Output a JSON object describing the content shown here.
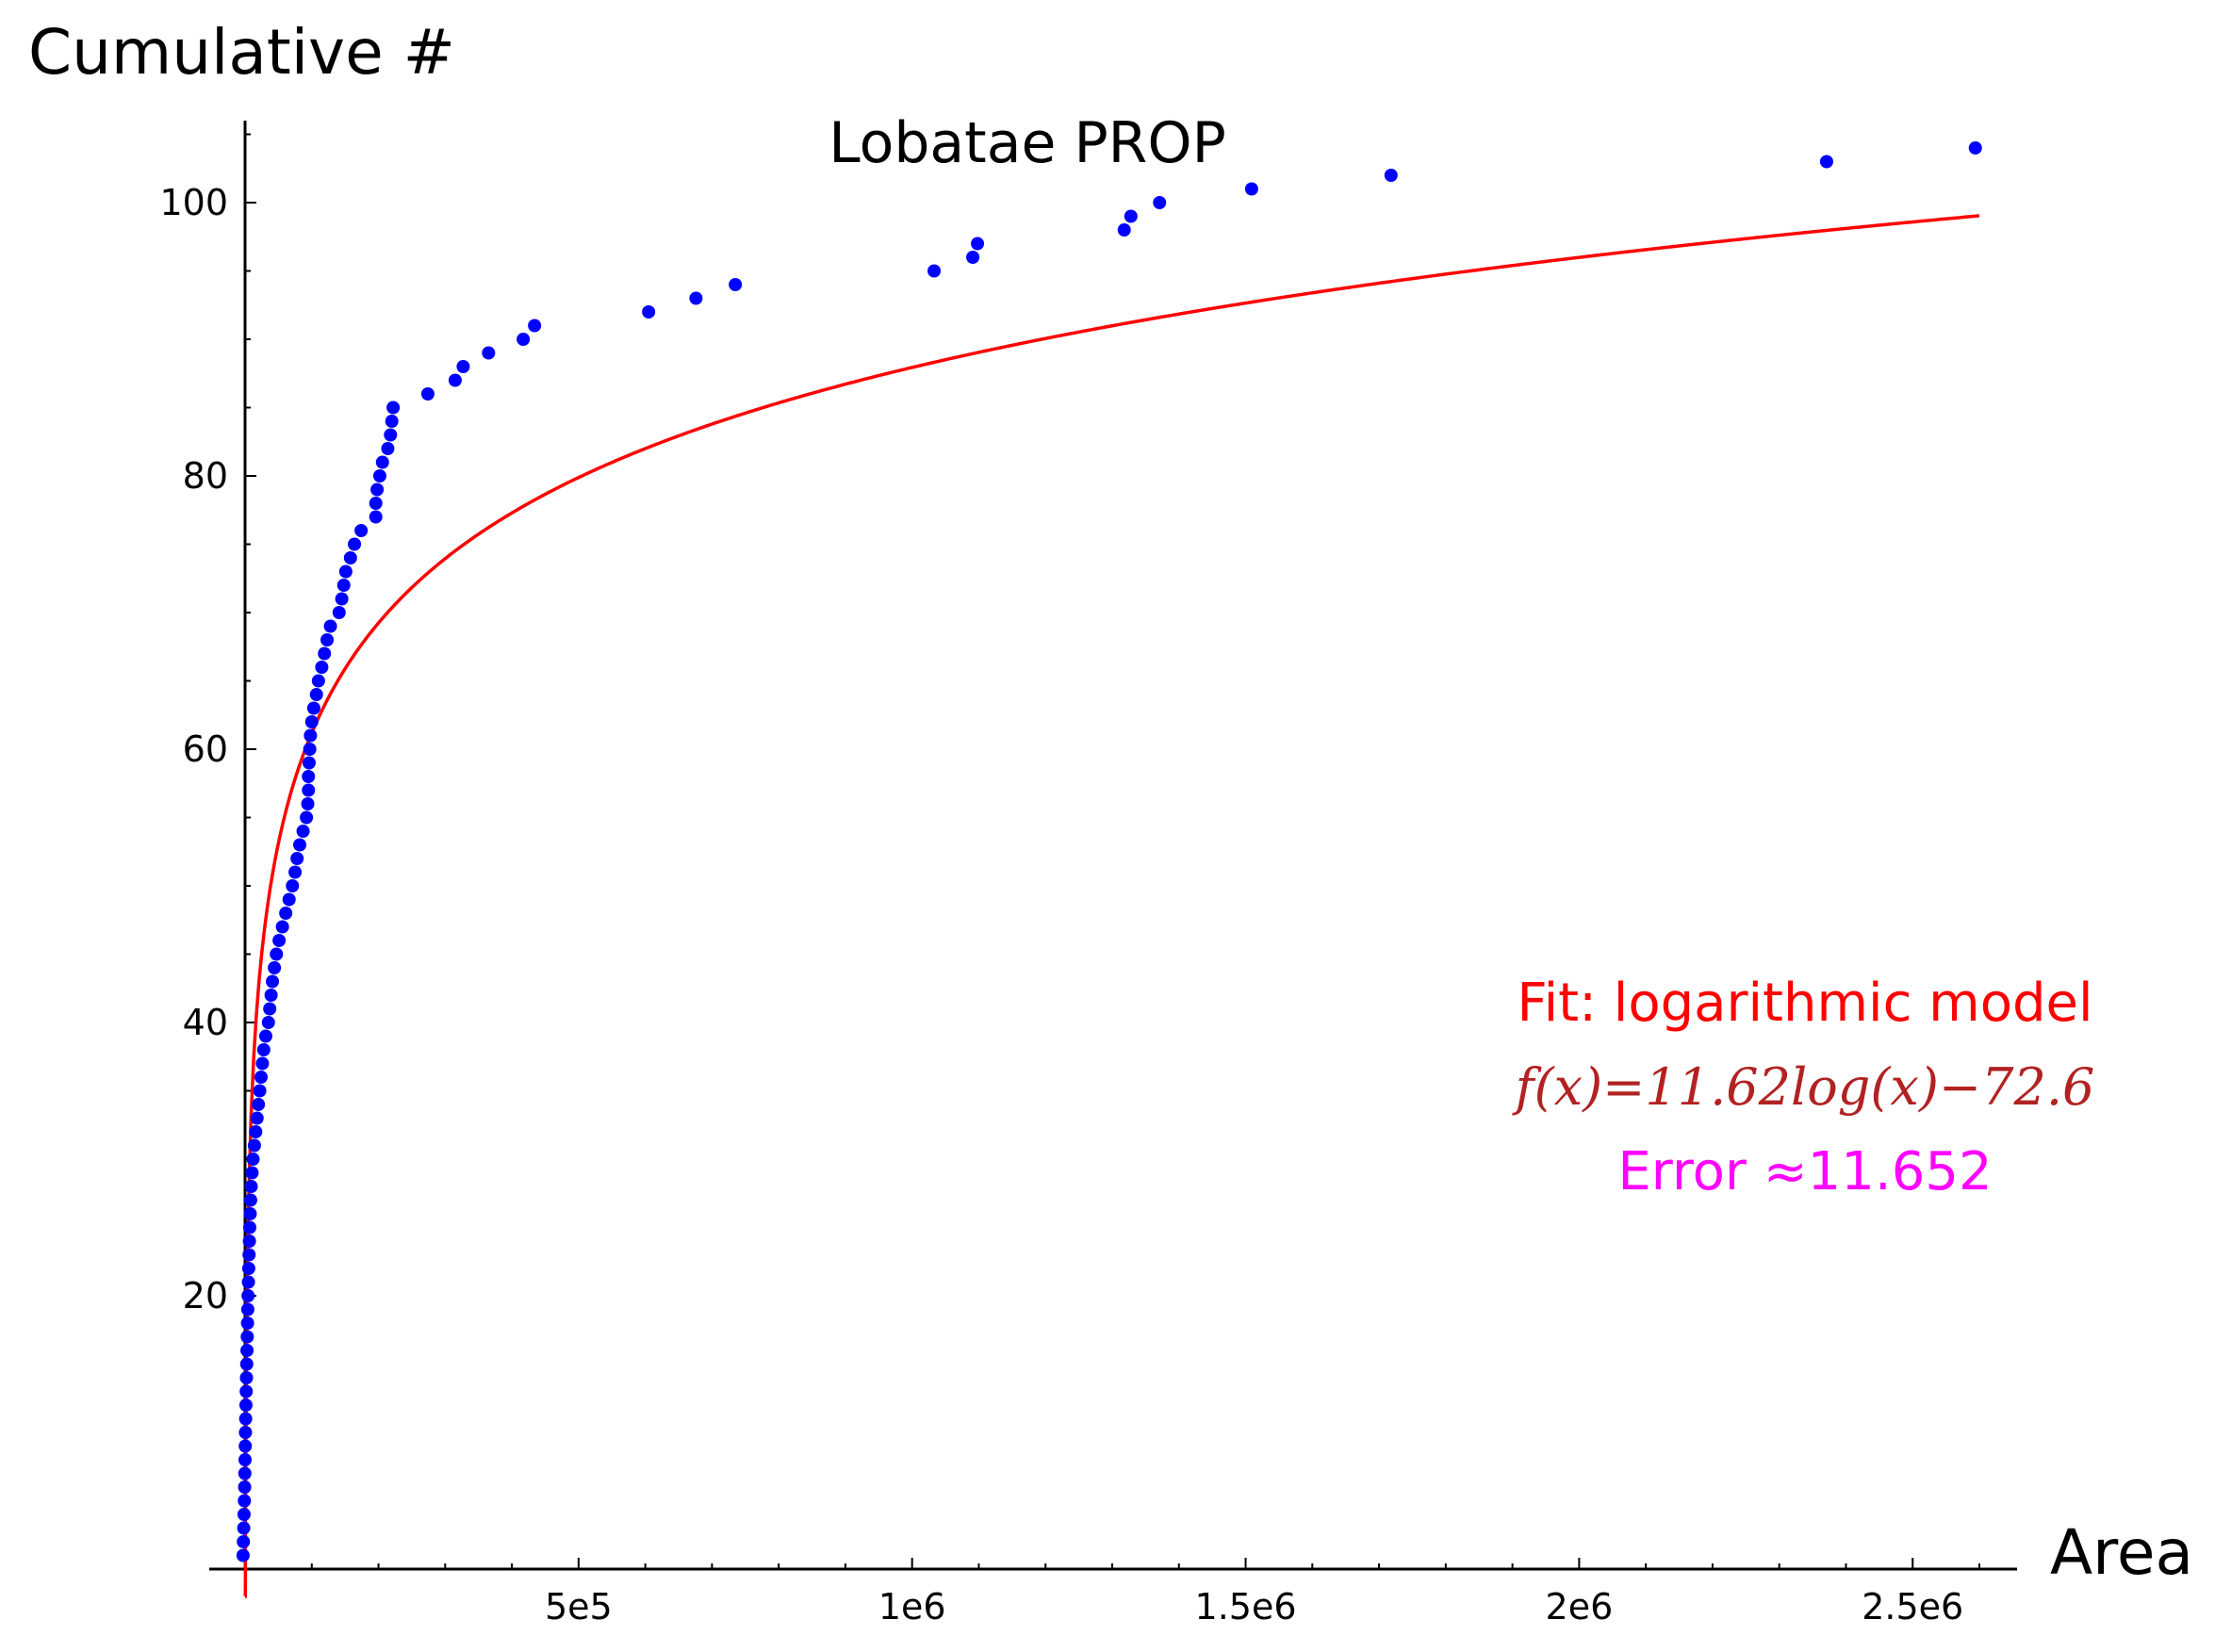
{
  "chart_data": {
    "type": "scatter",
    "title": "Lobatae PROP",
    "xlabel": "Area",
    "ylabel": "Cumulative #",
    "xlim": [
      -55000,
      2650000
    ],
    "ylim": [
      0,
      105
    ],
    "x_ticks": [
      {
        "value": 500000,
        "label": "5e5"
      },
      {
        "value": 1000000,
        "label": "1e6"
      },
      {
        "value": 1500000,
        "label": "1.5e6"
      },
      {
        "value": 2000000,
        "label": "2e6"
      },
      {
        "value": 2500000,
        "label": "2.5e6"
      }
    ],
    "y_ticks": [
      {
        "value": 20,
        "label": "20"
      },
      {
        "value": 40,
        "label": "40"
      },
      {
        "value": 60,
        "label": "60"
      },
      {
        "value": 80,
        "label": "80"
      },
      {
        "value": 100,
        "label": "100"
      }
    ],
    "grid": false,
    "series": [
      {
        "kind": "points",
        "color": "#0000ff",
        "points": [
          [
            -3000,
            1
          ],
          [
            -2500,
            2
          ],
          [
            -2000,
            3
          ],
          [
            -1500,
            4
          ],
          [
            -1000,
            5
          ],
          [
            -600,
            6
          ],
          [
            -300,
            7
          ],
          [
            0,
            8
          ],
          [
            300,
            9
          ],
          [
            600,
            10
          ],
          [
            900,
            11
          ],
          [
            1300,
            12
          ],
          [
            1700,
            13
          ],
          [
            2100,
            14
          ],
          [
            2500,
            15
          ],
          [
            2900,
            16
          ],
          [
            3300,
            17
          ],
          [
            3700,
            18
          ],
          [
            4100,
            19
          ],
          [
            4500,
            20
          ],
          [
            5000,
            21
          ],
          [
            5500,
            22
          ],
          [
            6000,
            23
          ],
          [
            6500,
            24
          ],
          [
            7000,
            25
          ],
          [
            7700,
            26
          ],
          [
            8400,
            27
          ],
          [
            9200,
            28
          ],
          [
            10500,
            29
          ],
          [
            12000,
            30
          ],
          [
            14000,
            31
          ],
          [
            16000,
            32
          ],
          [
            18000,
            33
          ],
          [
            20000,
            34
          ],
          [
            22000,
            35
          ],
          [
            24000,
            36
          ],
          [
            26000,
            37
          ],
          [
            28000,
            38
          ],
          [
            31000,
            39
          ],
          [
            35000,
            40
          ],
          [
            37000,
            41
          ],
          [
            39000,
            42
          ],
          [
            41000,
            43
          ],
          [
            44000,
            44
          ],
          [
            47000,
            45
          ],
          [
            51000,
            46
          ],
          [
            56000,
            47
          ],
          [
            61000,
            48
          ],
          [
            66000,
            49
          ],
          [
            71000,
            50
          ],
          [
            75000,
            51
          ],
          [
            78000,
            52
          ],
          [
            82000,
            53
          ],
          [
            87000,
            54
          ],
          [
            92000,
            55
          ],
          [
            94000,
            56
          ],
          [
            95000,
            57
          ],
          [
            95000,
            58
          ],
          [
            96000,
            59
          ],
          [
            97000,
            60
          ],
          [
            98000,
            61
          ],
          [
            100000,
            62
          ],
          [
            103000,
            63
          ],
          [
            107000,
            64
          ],
          [
            110000,
            65
          ],
          [
            115000,
            66
          ],
          [
            119000,
            67
          ],
          [
            123000,
            68
          ],
          [
            128000,
            69
          ],
          [
            141000,
            70
          ],
          [
            145000,
            71
          ],
          [
            148000,
            72
          ],
          [
            151000,
            73
          ],
          [
            158000,
            74
          ],
          [
            164000,
            75
          ],
          [
            174000,
            76
          ],
          [
            196000,
            77
          ],
          [
            196000,
            78
          ],
          [
            198000,
            79
          ],
          [
            202000,
            80
          ],
          [
            206000,
            81
          ],
          [
            214000,
            82
          ],
          [
            218000,
            83
          ],
          [
            220000,
            84
          ],
          [
            222000,
            85
          ],
          [
            274000,
            86
          ],
          [
            315000,
            87
          ],
          [
            327000,
            88
          ],
          [
            365000,
            89
          ],
          [
            417000,
            90
          ],
          [
            434000,
            91
          ],
          [
            605000,
            92
          ],
          [
            676000,
            93
          ],
          [
            735000,
            94
          ],
          [
            1033000,
            95
          ],
          [
            1091000,
            96
          ],
          [
            1098000,
            97
          ],
          [
            1318000,
            98
          ],
          [
            1328000,
            99
          ],
          [
            1371000,
            100
          ],
          [
            1509000,
            101
          ],
          [
            1718000,
            102
          ],
          [
            2371000,
            103
          ],
          [
            2594000,
            104
          ]
        ]
      },
      {
        "kind": "curve",
        "color": "#ff0000",
        "function": "f(x) = 11.62 log(x) - 72.6",
        "coefficients": {
          "a": 11.62,
          "b": -72.6
        },
        "x_range": [
          1,
          2600000
        ]
      }
    ],
    "annotations": [
      {
        "text": "Fit: logarithmic model",
        "color": "#ff0000"
      },
      {
        "text": "f(x)=11.62log(x)−72.6",
        "color": "#b22222"
      },
      {
        "text": "Error ≈11.652",
        "color": "#ff00ff"
      }
    ]
  }
}
